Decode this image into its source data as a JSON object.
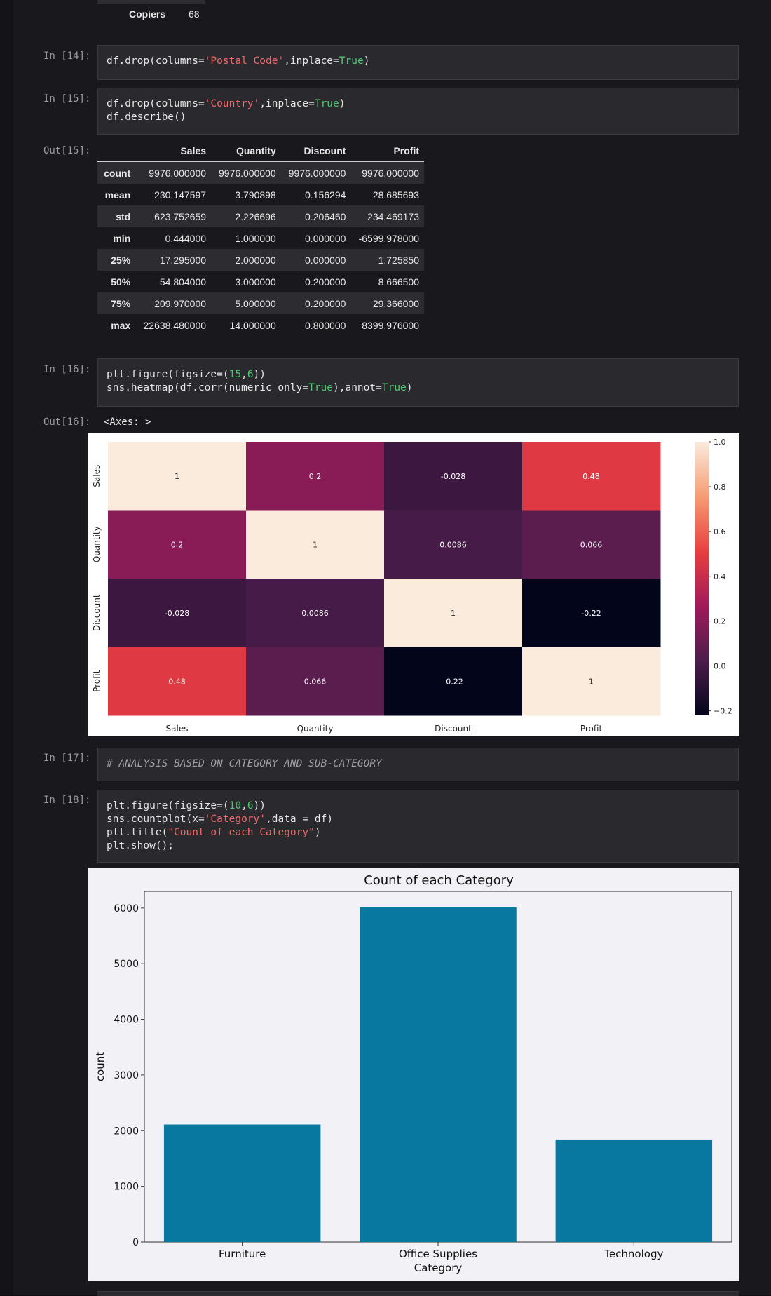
{
  "top_row": {
    "label": "Copiers",
    "value": "68"
  },
  "cells": {
    "c14": {
      "prompt": "In [14]:"
    },
    "c15": {
      "prompt": "In [15]:",
      "out_prompt": "Out[15]:"
    },
    "c16": {
      "prompt": "In [16]:",
      "out_prompt": "Out[16]:",
      "out_text": "<Axes: >"
    },
    "c17": {
      "prompt": "In [17]:",
      "comment": "# ANALYSIS BASED ON CATEGORY AND SUB-CATEGORY"
    },
    "c18": {
      "prompt": "In [18]:"
    }
  },
  "describe_table": {
    "columns": [
      "Sales",
      "Quantity",
      "Discount",
      "Profit"
    ],
    "rows": [
      {
        "label": "count",
        "values": [
          "9976.000000",
          "9976.000000",
          "9976.000000",
          "9976.000000"
        ]
      },
      {
        "label": "mean",
        "values": [
          "230.147597",
          "3.790898",
          "0.156294",
          "28.685693"
        ]
      },
      {
        "label": "std",
        "values": [
          "623.752659",
          "2.226696",
          "0.206460",
          "234.469173"
        ]
      },
      {
        "label": "min",
        "values": [
          "0.444000",
          "1.000000",
          "0.000000",
          "-6599.978000"
        ]
      },
      {
        "label": "25%",
        "values": [
          "17.295000",
          "2.000000",
          "0.000000",
          "1.725850"
        ]
      },
      {
        "label": "50%",
        "values": [
          "54.804000",
          "3.000000",
          "0.200000",
          "8.666500"
        ]
      },
      {
        "label": "75%",
        "values": [
          "209.970000",
          "5.000000",
          "0.200000",
          "29.366000"
        ]
      },
      {
        "label": "max",
        "values": [
          "22638.480000",
          "14.000000",
          "0.800000",
          "8399.976000"
        ]
      }
    ]
  },
  "chart_data": [
    {
      "type": "heatmap",
      "x": [
        "Sales",
        "Quantity",
        "Discount",
        "Profit"
      ],
      "y": [
        "Sales",
        "Quantity",
        "Discount",
        "Profit"
      ],
      "values": [
        [
          1,
          0.2,
          -0.028,
          0.48
        ],
        [
          0.2,
          1,
          0.0086,
          0.066
        ],
        [
          -0.028,
          0.0086,
          1,
          -0.22
        ],
        [
          0.48,
          0.066,
          -0.22,
          1
        ]
      ],
      "annotations": [
        [
          "1",
          "0.2",
          "-0.028",
          "0.48"
        ],
        [
          "0.2",
          "1",
          "0.0086",
          "0.066"
        ],
        [
          "-0.028",
          "0.0086",
          "1",
          "-0.22"
        ],
        [
          "0.48",
          "0.066",
          "-0.22",
          "1"
        ]
      ],
      "colorbar": {
        "min": -0.22,
        "max": 1,
        "ticks": [
          1.0,
          0.8,
          0.6,
          0.4,
          0.2,
          0.0,
          -0.2
        ],
        "tick_labels": [
          "1.0",
          "0.8",
          "0.6",
          "0.4",
          "0.2",
          "0.0",
          "−0.2"
        ]
      },
      "colormap": [
        "#03051a",
        "#4c1d4b",
        "#a11a5b",
        "#e83f3f",
        "#f69c73",
        "#faebdd"
      ]
    },
    {
      "type": "bar",
      "title": "Count of each Category",
      "xlabel": "Category",
      "ylabel": "count",
      "categories": [
        "Furniture",
        "Office Supplies",
        "Technology"
      ],
      "values": [
        2110,
        6010,
        1840
      ],
      "ylim": [
        0,
        6300
      ],
      "yticks": [
        0,
        1000,
        2000,
        3000,
        4000,
        5000,
        6000
      ],
      "bar_color": "#0878a0"
    }
  ]
}
